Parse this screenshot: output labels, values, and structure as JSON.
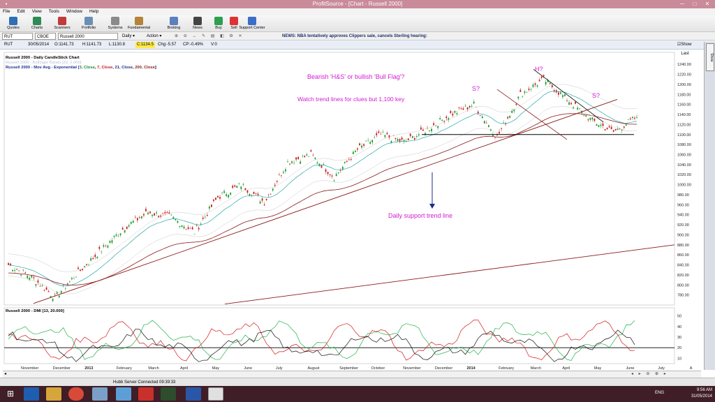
{
  "window": {
    "title": "ProfitSource - [Chart - Russell 2000]"
  },
  "menu": [
    "File",
    "Edit",
    "View",
    "Tools",
    "Window",
    "Help"
  ],
  "toolbar": [
    {
      "label": "Quotes",
      "icon": "quotes-icon",
      "color": "#2f6fb5"
    },
    {
      "label": "Charts",
      "icon": "charts-icon",
      "color": "#2e8b57"
    },
    {
      "label": "Scanners",
      "icon": "scanners-icon",
      "color": "#c23b3b"
    },
    {
      "label": "Portfolio",
      "icon": "portfolio-icon",
      "color": "#6a8fb5"
    },
    {
      "label": "Systems",
      "icon": "systems-icon",
      "color": "#8a8a8a"
    },
    {
      "label": "Fundamental",
      "icon": "fundamental-icon",
      "color": "#b5833a"
    },
    {
      "label": "Broking",
      "icon": "broking-icon",
      "color": "#5b7fbf"
    },
    {
      "label": "News",
      "icon": "news-icon",
      "color": "#444"
    },
    {
      "label": "Buy",
      "icon": "buy-icon",
      "color": "#2e9e4f"
    },
    {
      "label": "Sell",
      "icon": "sell-icon",
      "color": "#d33"
    },
    {
      "label": "Support Center",
      "icon": "support-icon",
      "color": "#3a6ec9"
    }
  ],
  "symbolbar": {
    "symbol": "RUT",
    "exchange": "CBOE",
    "name": "Russell 2000",
    "period": "Daily",
    "action": "Action"
  },
  "news": "NEWS: NBA tentatively approves Clippers sale, cancels Sterling hearing:",
  "quote": {
    "symbol": "RUT",
    "date": "30/05/2014",
    "open": "O:1141.73",
    "high": "H:1141.73",
    "low": "L:1130.8",
    "close": "C:1134.5",
    "change": "Chg:-5.57",
    "changepct": "CP:-0.49%",
    "volume": "V:0",
    "show_last": "Show Last"
  },
  "legend": {
    "line1": "Russell 2000 - Daily CandleStick Chart",
    "line2": "Russell 2000 - Bollinger Bands [20, 2.000]",
    "line3_name": "Russell 2000 - Mov Avg - Exponential [",
    "line3_params": [
      "3, Close",
      "7, Close",
      "21, Close",
      "200, Close"
    ],
    "line3_end": "]"
  },
  "indicator_label": "Russell 2000 - DMI [13, 20.000]",
  "annotations": {
    "title": "Bearish 'H&S' or bullish 'Bull Flag'?",
    "subtitle": "Watch trend lines for clues but 1,100 key",
    "support": "Daily support trend line",
    "s1": "S?",
    "h": "H?",
    "s2": "S?"
  },
  "colors": {
    "annotation": "#d21cd2",
    "arrow": "#1b2a8a",
    "trend": "#8b1a1a",
    "candle_up": "#1f9a2e",
    "candle_down": "#c71a1a",
    "ema3": "#1e8c3a",
    "ema7": "#c21d1d",
    "ema21": "#1b2f8f",
    "ema200": "#8b1a1a"
  },
  "chart_data": [
    {
      "type": "line",
      "title": "Russell 2000 - Daily CandleStick Chart",
      "ylim": [
        760,
        1250
      ],
      "y_ticks": [
        780,
        800,
        820,
        840,
        860,
        880,
        900,
        920,
        940,
        960,
        980,
        1000,
        1020,
        1040,
        1060,
        1080,
        1100,
        1120,
        1140,
        1160,
        1180,
        1200,
        1220,
        1240
      ],
      "x_labels": [
        "November",
        "December",
        "2013",
        "February",
        "March",
        "April",
        "May",
        "June",
        "July",
        "August",
        "September",
        "October",
        "November",
        "December",
        "2014",
        "February",
        "March",
        "April",
        "May",
        "June",
        "July",
        "A"
      ],
      "series": [
        {
          "name": "Russell 2000",
          "x": [
            "Oct-12",
            "Nov-12",
            "Nov-12",
            "Dec-12",
            "Jan-13",
            "Feb-13",
            "Mar-13",
            "Apr-13",
            "Apr-13",
            "May-13",
            "Jun-13",
            "Jun-13",
            "Jul-13",
            "Aug-13",
            "Aug-13",
            "Sep-13",
            "Oct-13",
            "Oct-13",
            "Nov-13",
            "Dec-13",
            "Jan-14",
            "Jan-14",
            "Feb-14",
            "Mar-14",
            "Apr-14",
            "Apr-14",
            "May-14",
            "May-14"
          ],
          "values": [
            840,
            815,
            775,
            825,
            870,
            915,
            945,
            935,
            905,
            975,
            1000,
            965,
            1045,
            1060,
            1015,
            1070,
            1100,
            1085,
            1110,
            1140,
            1160,
            1095,
            1180,
            1210,
            1170,
            1130,
            1105,
            1135
          ]
        }
      ]
    },
    {
      "type": "line",
      "title": "Russell 2000 - DMI [13, 20.000]",
      "ylim": [
        5,
        55
      ],
      "y_ticks": [
        10,
        20,
        30,
        40,
        50
      ]
    }
  ],
  "taskbar": {
    "time": "9:56 AM",
    "date": "31/05/2014",
    "lang": "ENG",
    "status": "Hubb Server Connected 09:39:33"
  }
}
